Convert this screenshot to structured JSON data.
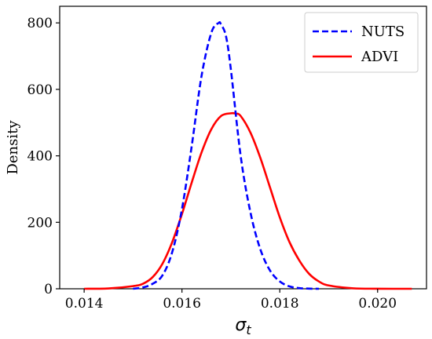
{
  "chart_data": {
    "type": "line",
    "xlabel": "σ_t",
    "xlabel_main": "σ",
    "xlabel_sub": "t",
    "ylabel": "Density",
    "xlim": [
      0.0135,
      0.021
    ],
    "ylim": [
      0,
      850
    ],
    "x_ticks": [
      0.014,
      0.016,
      0.018,
      0.02
    ],
    "x_tick_labels": [
      "0.014",
      "0.016",
      "0.018",
      "0.020"
    ],
    "y_ticks": [
      0,
      200,
      400,
      600,
      800
    ],
    "y_tick_labels": [
      "0",
      "200",
      "400",
      "600",
      "800"
    ],
    "grid": false,
    "legend_position": "top-right",
    "series": [
      {
        "name": "NUTS",
        "color": "#0000ff",
        "style": "dashed",
        "x": [
          0.015,
          0.0152,
          0.0154,
          0.0156,
          0.0158,
          0.016,
          0.0162,
          0.0164,
          0.0166,
          0.01675,
          0.0168,
          0.0169,
          0.017,
          0.0172,
          0.0174,
          0.0176,
          0.0178,
          0.018,
          0.0182,
          0.0184,
          0.0186,
          0.0188
        ],
        "y": [
          0,
          4,
          15,
          40,
          110,
          240,
          430,
          640,
          770,
          800,
          795,
          760,
          660,
          400,
          230,
          120,
          55,
          22,
          7,
          2,
          0.5,
          0
        ]
      },
      {
        "name": "ADVI",
        "color": "#ff0000",
        "style": "solid",
        "x": [
          0.014,
          0.0145,
          0.015,
          0.0152,
          0.0154,
          0.0156,
          0.0158,
          0.016,
          0.0162,
          0.0164,
          0.0166,
          0.0168,
          0.017,
          0.0171,
          0.0172,
          0.0174,
          0.0176,
          0.0178,
          0.018,
          0.0182,
          0.0184,
          0.0186,
          0.0188,
          0.019,
          0.0195,
          0.02,
          0.0207
        ],
        "y": [
          0,
          1,
          8,
          15,
          35,
          75,
          140,
          225,
          320,
          410,
          480,
          520,
          528,
          527,
          520,
          470,
          395,
          305,
          215,
          140,
          85,
          45,
          22,
          10,
          1.5,
          0.2,
          0
        ]
      }
    ]
  }
}
